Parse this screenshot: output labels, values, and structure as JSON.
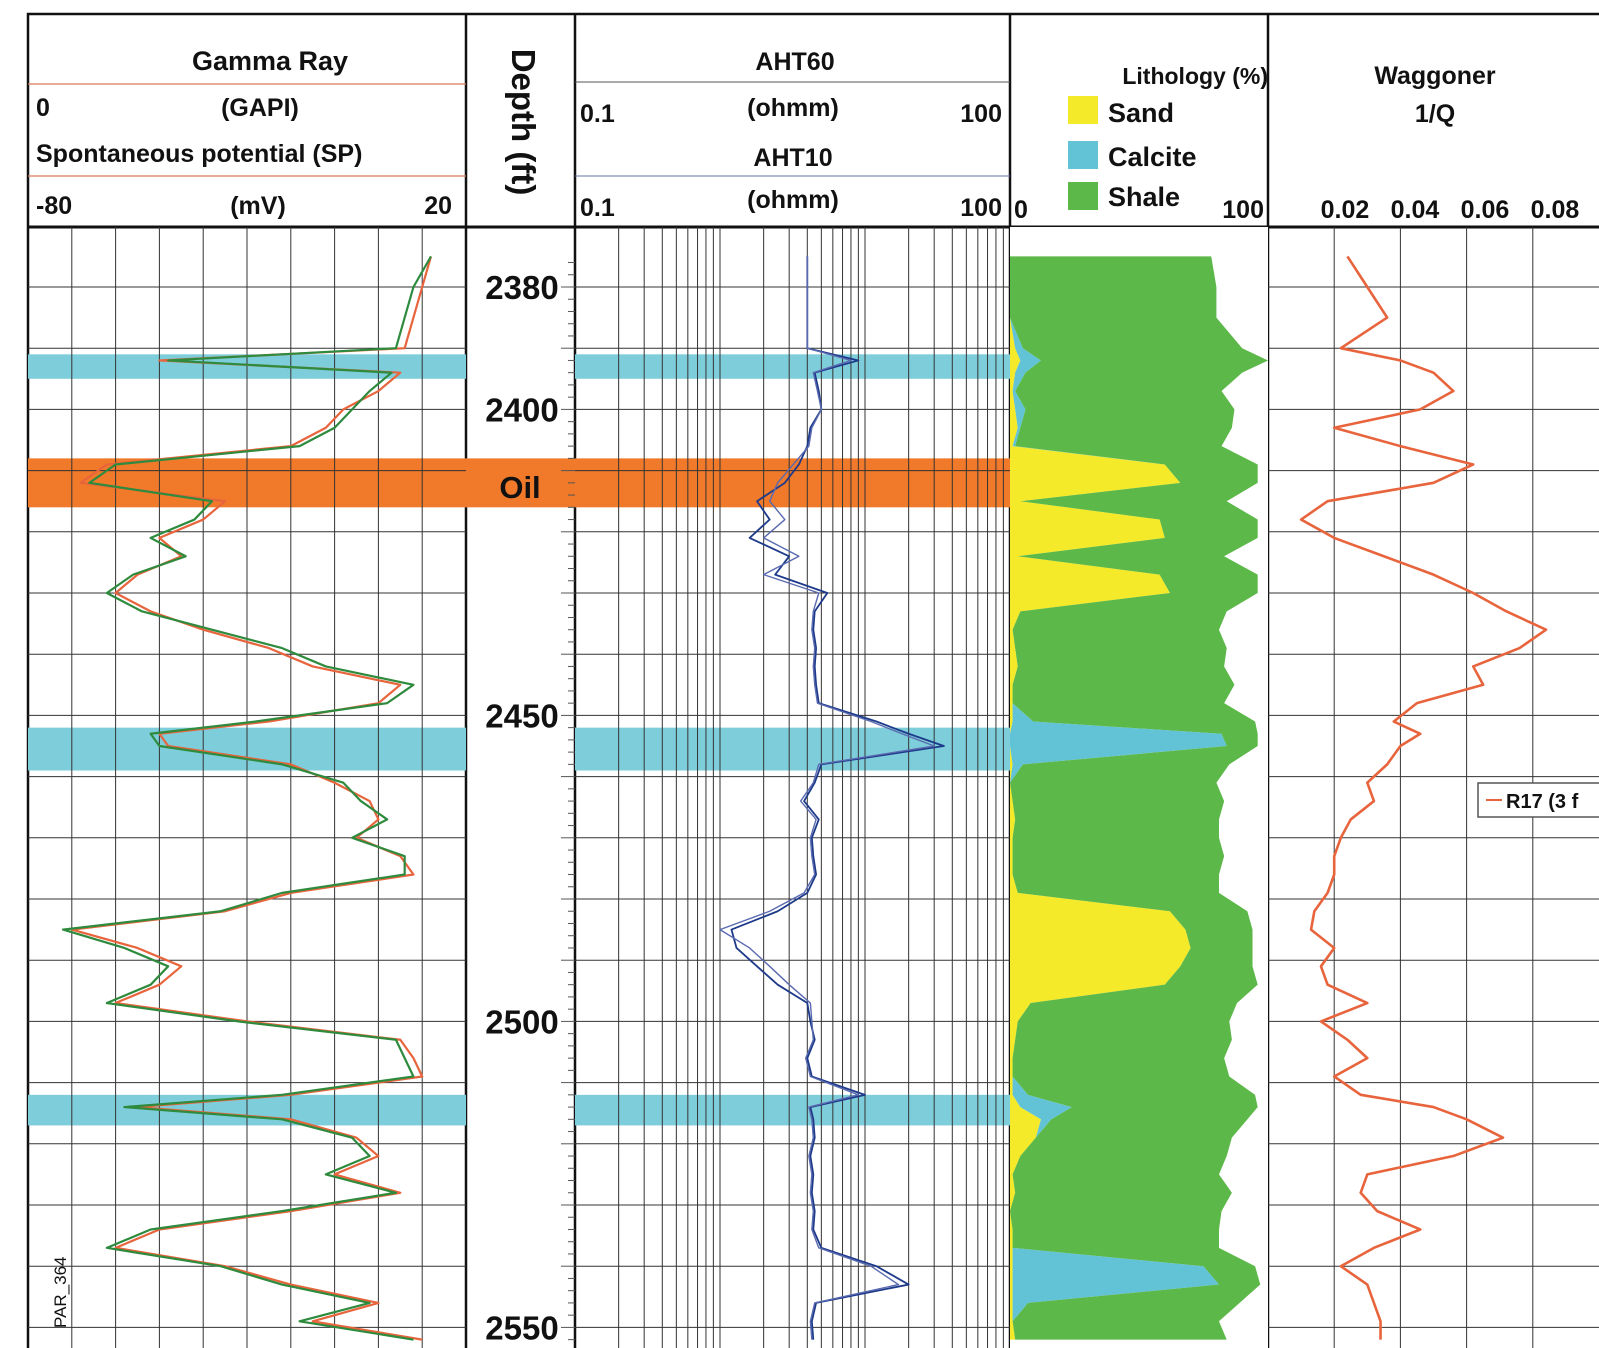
{
  "figure_tag": "PAR_364",
  "oil_label": "Oil",
  "tracks": {
    "gamma": {
      "title": "Gamma Ray",
      "unit": "(GAPI)",
      "min_label": "0",
      "sp_title": "Spontaneous potential (SP)",
      "sp_min": "-80",
      "sp_unit": "(mV)",
      "sp_max": "20"
    },
    "depth": {
      "title": "Depth (ft)"
    },
    "resistivity": {
      "aht60": "AHT60",
      "aht60_unit": "(ohmm)",
      "aht60_min": "0.1",
      "aht60_max": "100",
      "aht10": "AHT10",
      "aht10_unit": "(ohmm)",
      "aht10_min": "0.1",
      "aht10_max": "100"
    },
    "lithology": {
      "title": "Lithology (%)",
      "min": "0",
      "max": "100",
      "legend": [
        {
          "label": "Sand",
          "color": "#f4ea2a"
        },
        {
          "label": "Calcite",
          "color": "#63c3d6"
        },
        {
          "label": "Shale",
          "color": "#5cb848"
        }
      ]
    },
    "waggoner": {
      "title": "Waggoner",
      "subtitle": "1/Q",
      "ticks": [
        "0.02",
        "0.04",
        "0.06",
        "0.08"
      ],
      "legend_label": "R17 (3 f"
    }
  },
  "colors": {
    "calcite_band": "#7ecdda",
    "oil_band": "#f07a2a",
    "gr_curve": "#e8643c",
    "sp_curve": "#2e8b3e",
    "aht60_curve": "#1e3a8a",
    "aht10_curve": "#5a6ab0",
    "waggoner_curve": "#e8643c",
    "sand": "#f4ea2a",
    "calcite": "#63c3d6",
    "shale": "#5cb848"
  },
  "chart_data": {
    "type": "line",
    "y_axis": {
      "label": "Depth (ft)",
      "range": [
        2373,
        2555
      ],
      "ticks": [
        2380,
        2400,
        2450,
        2500,
        2550
      ]
    },
    "zones": [
      {
        "type": "calcite",
        "top": 2391,
        "bottom": 2395
      },
      {
        "type": "oil",
        "top": 2408,
        "bottom": 2416
      },
      {
        "type": "calcite",
        "top": 2452,
        "bottom": 2459
      },
      {
        "type": "calcite",
        "top": 2512,
        "bottom": 2517
      }
    ],
    "depth": [
      2375,
      2380,
      2385,
      2390,
      2392,
      2394,
      2397,
      2400,
      2403,
      2406,
      2409,
      2412,
      2415,
      2418,
      2421,
      2424,
      2427,
      2430,
      2433,
      2436,
      2439,
      2442,
      2445,
      2448,
      2451,
      2453,
      2455,
      2458,
      2461,
      2464,
      2467,
      2470,
      2473,
      2476,
      2479,
      2482,
      2485,
      2488,
      2491,
      2494,
      2497,
      2500,
      2503,
      2506,
      2509,
      2512,
      2514,
      2516,
      2519,
      2522,
      2525,
      2528,
      2531,
      2534,
      2537,
      2540,
      2543,
      2546,
      2549,
      2552
    ],
    "series": [
      {
        "name": "Gamma Ray",
        "unit": "GAPI",
        "values": [
          92,
          90,
          88,
          86,
          30,
          85,
          80,
          72,
          68,
          60,
          18,
          12,
          45,
          40,
          30,
          35,
          25,
          20,
          28,
          40,
          55,
          65,
          85,
          80,
          55,
          30,
          32,
          60,
          70,
          78,
          80,
          75,
          85,
          88,
          60,
          45,
          10,
          25,
          35,
          30,
          20,
          50,
          85,
          88,
          90,
          60,
          25,
          60,
          75,
          80,
          70,
          85,
          60,
          30,
          20,
          45,
          60,
          80,
          65,
          90
        ]
      },
      {
        "name": "Spontaneous potential (SP)",
        "unit": "mV",
        "values": [
          92,
          88,
          86,
          84,
          32,
          83,
          78,
          74,
          70,
          62,
          20,
          14,
          42,
          38,
          28,
          36,
          24,
          18,
          26,
          42,
          58,
          68,
          88,
          82,
          52,
          28,
          30,
          58,
          72,
          76,
          82,
          74,
          86,
          86,
          58,
          44,
          8,
          22,
          32,
          28,
          18,
          48,
          84,
          86,
          88,
          58,
          22,
          58,
          74,
          78,
          68,
          84,
          58,
          28,
          18,
          44,
          58,
          78,
          62,
          88
        ]
      },
      {
        "name": "AHT60",
        "unit": "ohmm",
        "values": [
          4,
          4,
          4,
          4,
          9,
          4.5,
          4.8,
          5,
          4.2,
          4,
          3.5,
          2.8,
          1.8,
          2.2,
          1.6,
          3.0,
          2.4,
          5.5,
          4.5,
          4.4,
          4.6,
          4.5,
          4.6,
          4.8,
          12,
          20,
          35,
          5,
          4.5,
          3.8,
          4.8,
          4.3,
          4.4,
          4.6,
          4.0,
          2.5,
          1.2,
          1.3,
          1.8,
          2.5,
          4.0,
          4.2,
          4.5,
          4.0,
          4.3,
          10,
          4.2,
          4.4,
          4.5,
          4.2,
          4.4,
          4.3,
          4.5,
          4.4,
          5,
          12,
          20,
          4.6,
          4.3,
          4.4
        ]
      },
      {
        "name": "AHT10",
        "unit": "ohmm",
        "values": [
          4,
          4,
          4,
          4,
          8,
          4.4,
          4.7,
          5,
          4.3,
          4.1,
          3.2,
          2.5,
          2.2,
          2.8,
          2.0,
          3.5,
          2.0,
          4.8,
          4.4,
          4.3,
          4.5,
          4.4,
          4.5,
          4.7,
          11,
          18,
          30,
          4.8,
          4.4,
          3.6,
          4.6,
          4.2,
          4.3,
          4.5,
          3.8,
          2.2,
          1.0,
          1.6,
          2.2,
          3.0,
          4.2,
          4.3,
          4.4,
          3.9,
          4.2,
          9,
          4.1,
          4.3,
          4.4,
          4.1,
          4.3,
          4.2,
          4.4,
          4.3,
          4.8,
          11,
          17,
          4.5,
          4.2,
          4.3
        ]
      },
      {
        "name": "Sand (%)",
        "unit": "%",
        "values": [
          0,
          0,
          0,
          2,
          4,
          2,
          1,
          2,
          3,
          1,
          60,
          66,
          4,
          58,
          60,
          3,
          58,
          62,
          4,
          1,
          2,
          3,
          1,
          1,
          1,
          0,
          0,
          1,
          0,
          1,
          2,
          1,
          1,
          1,
          3,
          62,
          68,
          70,
          66,
          60,
          8,
          3,
          2,
          1,
          1,
          1,
          4,
          12,
          10,
          4,
          1,
          2,
          0,
          1,
          1,
          1,
          1,
          1,
          1,
          2
        ]
      },
      {
        "name": "Calcite (%)",
        "unit": "%",
        "values": [
          0,
          0,
          0,
          3,
          8,
          4,
          1,
          4,
          1,
          1,
          0,
          0,
          0,
          0,
          0,
          0,
          0,
          0,
          0,
          0,
          0,
          0,
          0,
          0,
          8,
          82,
          84,
          4,
          0,
          0,
          0,
          0,
          0,
          0,
          0,
          0,
          0,
          0,
          0,
          0,
          0,
          0,
          0,
          0,
          0,
          6,
          20,
          4,
          0,
          0,
          0,
          0,
          0,
          0,
          0,
          74,
          80,
          6,
          0,
          0
        ]
      },
      {
        "name": "Shale (%)",
        "unit": "%",
        "values": [
          78,
          80,
          80,
          85,
          95,
          84,
          80,
          81,
          82,
          80,
          36,
          30,
          80,
          38,
          36,
          80,
          38,
          34,
          80,
          80,
          82,
          80,
          86,
          82,
          86,
          14,
          12,
          80,
          80,
          82,
          79,
          80,
          82,
          80,
          78,
          30,
          26,
          24,
          28,
          36,
          80,
          82,
          84,
          82,
          84,
          88,
          72,
          76,
          76,
          80,
          80,
          84,
          82,
          80,
          80,
          20,
          16,
          82,
          80,
          82
        ]
      },
      {
        "name": "R17 (3 f",
        "unit": "1/Q",
        "values": [
          0.024,
          0.03,
          0.036,
          0.022,
          0.04,
          0.05,
          0.056,
          0.046,
          0.02,
          0.04,
          0.062,
          0.05,
          0.018,
          0.01,
          0.02,
          0.035,
          0.05,
          0.062,
          0.072,
          0.084,
          0.076,
          0.062,
          0.065,
          0.045,
          0.038,
          0.046,
          0.04,
          0.036,
          0.03,
          0.032,
          0.025,
          0.022,
          0.02,
          0.02,
          0.018,
          0.014,
          0.013,
          0.02,
          0.016,
          0.018,
          0.03,
          0.016,
          0.024,
          0.03,
          0.02,
          0.028,
          0.05,
          0.06,
          0.071,
          0.056,
          0.03,
          0.028,
          0.033,
          0.046,
          0.032,
          0.022,
          0.03,
          0.032,
          0.034,
          0.034
        ]
      }
    ]
  }
}
